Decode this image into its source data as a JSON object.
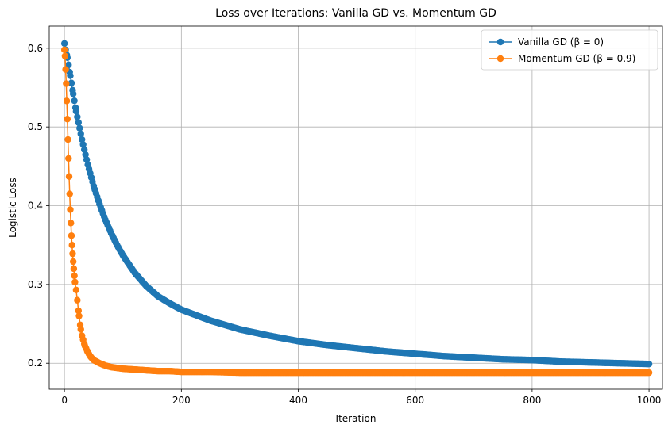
{
  "chart_data": {
    "type": "line",
    "title": "Loss over Iterations: Vanilla GD vs. Momentum GD",
    "xlabel": "Iteration",
    "ylabel": "Logistic Loss",
    "xlim": [
      -26,
      1023
    ],
    "ylim": [
      0.167,
      0.628
    ],
    "xticks": [
      0,
      200,
      400,
      600,
      800,
      1000
    ],
    "yticks": [
      0.2,
      0.3,
      0.4,
      0.5,
      0.6
    ],
    "grid": true,
    "legend_position": "top-right",
    "series": [
      {
        "name": "Vanilla GD (β = 0)",
        "color": "#1f77b4",
        "marker": "circle",
        "x": [
          0,
          2,
          5,
          10,
          15,
          20,
          30,
          40,
          50,
          60,
          70,
          80,
          90,
          100,
          120,
          140,
          160,
          180,
          200,
          250,
          300,
          350,
          400,
          450,
          500,
          550,
          600,
          650,
          700,
          750,
          800,
          850,
          900,
          950,
          1000
        ],
        "y": [
          0.606,
          0.598,
          0.588,
          0.565,
          0.542,
          0.52,
          0.484,
          0.452,
          0.425,
          0.402,
          0.382,
          0.365,
          0.35,
          0.337,
          0.315,
          0.298,
          0.285,
          0.276,
          0.268,
          0.254,
          0.243,
          0.235,
          0.228,
          0.223,
          0.219,
          0.215,
          0.212,
          0.209,
          0.207,
          0.205,
          0.204,
          0.202,
          0.201,
          0.2,
          0.199
        ]
      },
      {
        "name": "Momentum GD (β = 0.9)",
        "color": "#ff7f0e",
        "marker": "circle",
        "x": [
          0,
          1,
          2,
          3,
          4,
          5,
          6,
          7,
          8,
          9,
          10,
          11,
          12,
          13,
          14,
          15,
          16,
          17,
          18,
          20,
          22,
          25,
          28,
          30,
          35,
          40,
          45,
          50,
          60,
          70,
          80,
          90,
          100,
          120,
          140,
          160,
          180,
          200,
          250,
          300,
          400,
          500,
          600,
          700,
          800,
          900,
          1000
        ],
        "y": [
          0.598,
          0.59,
          0.573,
          0.555,
          0.533,
          0.51,
          0.484,
          0.46,
          0.437,
          0.415,
          0.395,
          0.378,
          0.362,
          0.35,
          0.339,
          0.329,
          0.32,
          0.311,
          0.303,
          0.293,
          0.28,
          0.26,
          0.243,
          0.235,
          0.222,
          0.214,
          0.208,
          0.204,
          0.2,
          0.197,
          0.195,
          0.194,
          0.193,
          0.192,
          0.191,
          0.19,
          0.19,
          0.189,
          0.189,
          0.188,
          0.188,
          0.188,
          0.188,
          0.188,
          0.188,
          0.188,
          0.188
        ]
      }
    ]
  }
}
